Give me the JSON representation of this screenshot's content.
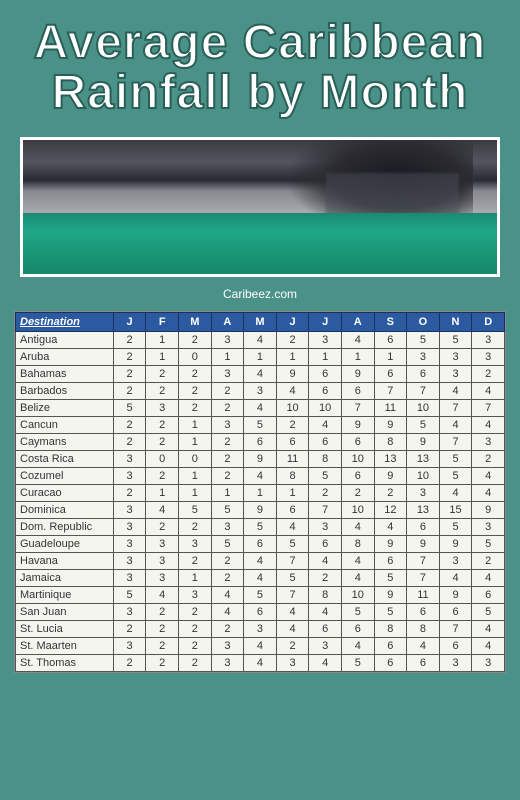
{
  "title_line1": "Average Caribbean",
  "title_line2": "Rainfall by Month",
  "credit": "Caribeez.com",
  "hero_colors": {
    "sky_dark": "#2a2a32",
    "sky_mid": "#555560",
    "sea_top": "#1fa888",
    "sea_bottom": "#158868",
    "border": "#ffffff"
  },
  "table": {
    "type": "table",
    "header_bg": "#2c5aa0",
    "header_color": "#ffffff",
    "cell_border": "#555555",
    "cell_bg": "#f5f5f0",
    "dest_header": "Destination",
    "month_headers": [
      "J",
      "F",
      "M",
      "A",
      "M",
      "J",
      "J",
      "A",
      "S",
      "O",
      "N",
      "D"
    ],
    "rows": [
      {
        "dest": "Antigua",
        "v": [
          2,
          1,
          2,
          3,
          4,
          2,
          3,
          4,
          6,
          5,
          5,
          3
        ]
      },
      {
        "dest": "Aruba",
        "v": [
          2,
          1,
          0,
          1,
          1,
          1,
          1,
          1,
          1,
          3,
          3,
          3
        ]
      },
      {
        "dest": "Bahamas",
        "v": [
          2,
          2,
          2,
          3,
          4,
          9,
          6,
          9,
          6,
          6,
          3,
          2
        ]
      },
      {
        "dest": "Barbados",
        "v": [
          2,
          2,
          2,
          2,
          3,
          4,
          6,
          6,
          7,
          7,
          4,
          4
        ]
      },
      {
        "dest": "Belize",
        "v": [
          5,
          3,
          2,
          2,
          4,
          10,
          10,
          7,
          11,
          10,
          7,
          7
        ]
      },
      {
        "dest": "Cancun",
        "v": [
          2,
          2,
          1,
          3,
          5,
          2,
          4,
          9,
          9,
          5,
          4,
          4
        ]
      },
      {
        "dest": "Caymans",
        "v": [
          2,
          2,
          1,
          2,
          6,
          6,
          6,
          6,
          8,
          9,
          7,
          3
        ]
      },
      {
        "dest": "Costa Rica",
        "v": [
          3,
          0,
          0,
          2,
          9,
          11,
          8,
          10,
          13,
          13,
          5,
          2
        ]
      },
      {
        "dest": "Cozumel",
        "v": [
          3,
          2,
          1,
          2,
          4,
          8,
          5,
          6,
          9,
          10,
          5,
          4
        ]
      },
      {
        "dest": "Curacao",
        "v": [
          2,
          1,
          1,
          1,
          1,
          1,
          2,
          2,
          2,
          3,
          4,
          4
        ]
      },
      {
        "dest": "Dominica",
        "v": [
          3,
          4,
          5,
          5,
          9,
          6,
          7,
          10,
          12,
          13,
          15,
          9
        ]
      },
      {
        "dest": "Dom. Republic",
        "v": [
          3,
          2,
          2,
          3,
          5,
          4,
          3,
          4,
          4,
          6,
          5,
          3
        ]
      },
      {
        "dest": "Guadeloupe",
        "v": [
          3,
          3,
          3,
          5,
          6,
          5,
          6,
          8,
          9,
          9,
          9,
          5
        ]
      },
      {
        "dest": "Havana",
        "v": [
          3,
          3,
          2,
          2,
          4,
          7,
          4,
          4,
          6,
          7,
          3,
          2
        ]
      },
      {
        "dest": "Jamaica",
        "v": [
          3,
          3,
          1,
          2,
          4,
          5,
          2,
          4,
          5,
          7,
          4,
          4
        ]
      },
      {
        "dest": "Martinique",
        "v": [
          5,
          4,
          3,
          4,
          5,
          7,
          8,
          10,
          9,
          11,
          9,
          6
        ]
      },
      {
        "dest": "San Juan",
        "v": [
          3,
          2,
          2,
          4,
          6,
          4,
          4,
          5,
          5,
          6,
          6,
          5
        ]
      },
      {
        "dest": "St. Lucia",
        "v": [
          2,
          2,
          2,
          2,
          3,
          4,
          6,
          6,
          8,
          8,
          7,
          4
        ]
      },
      {
        "dest": "St. Maarten",
        "v": [
          3,
          2,
          2,
          3,
          4,
          2,
          3,
          4,
          6,
          4,
          6,
          4
        ]
      },
      {
        "dest": "St. Thomas",
        "v": [
          2,
          2,
          2,
          3,
          4,
          3,
          4,
          5,
          6,
          6,
          3,
          3
        ]
      }
    ]
  }
}
